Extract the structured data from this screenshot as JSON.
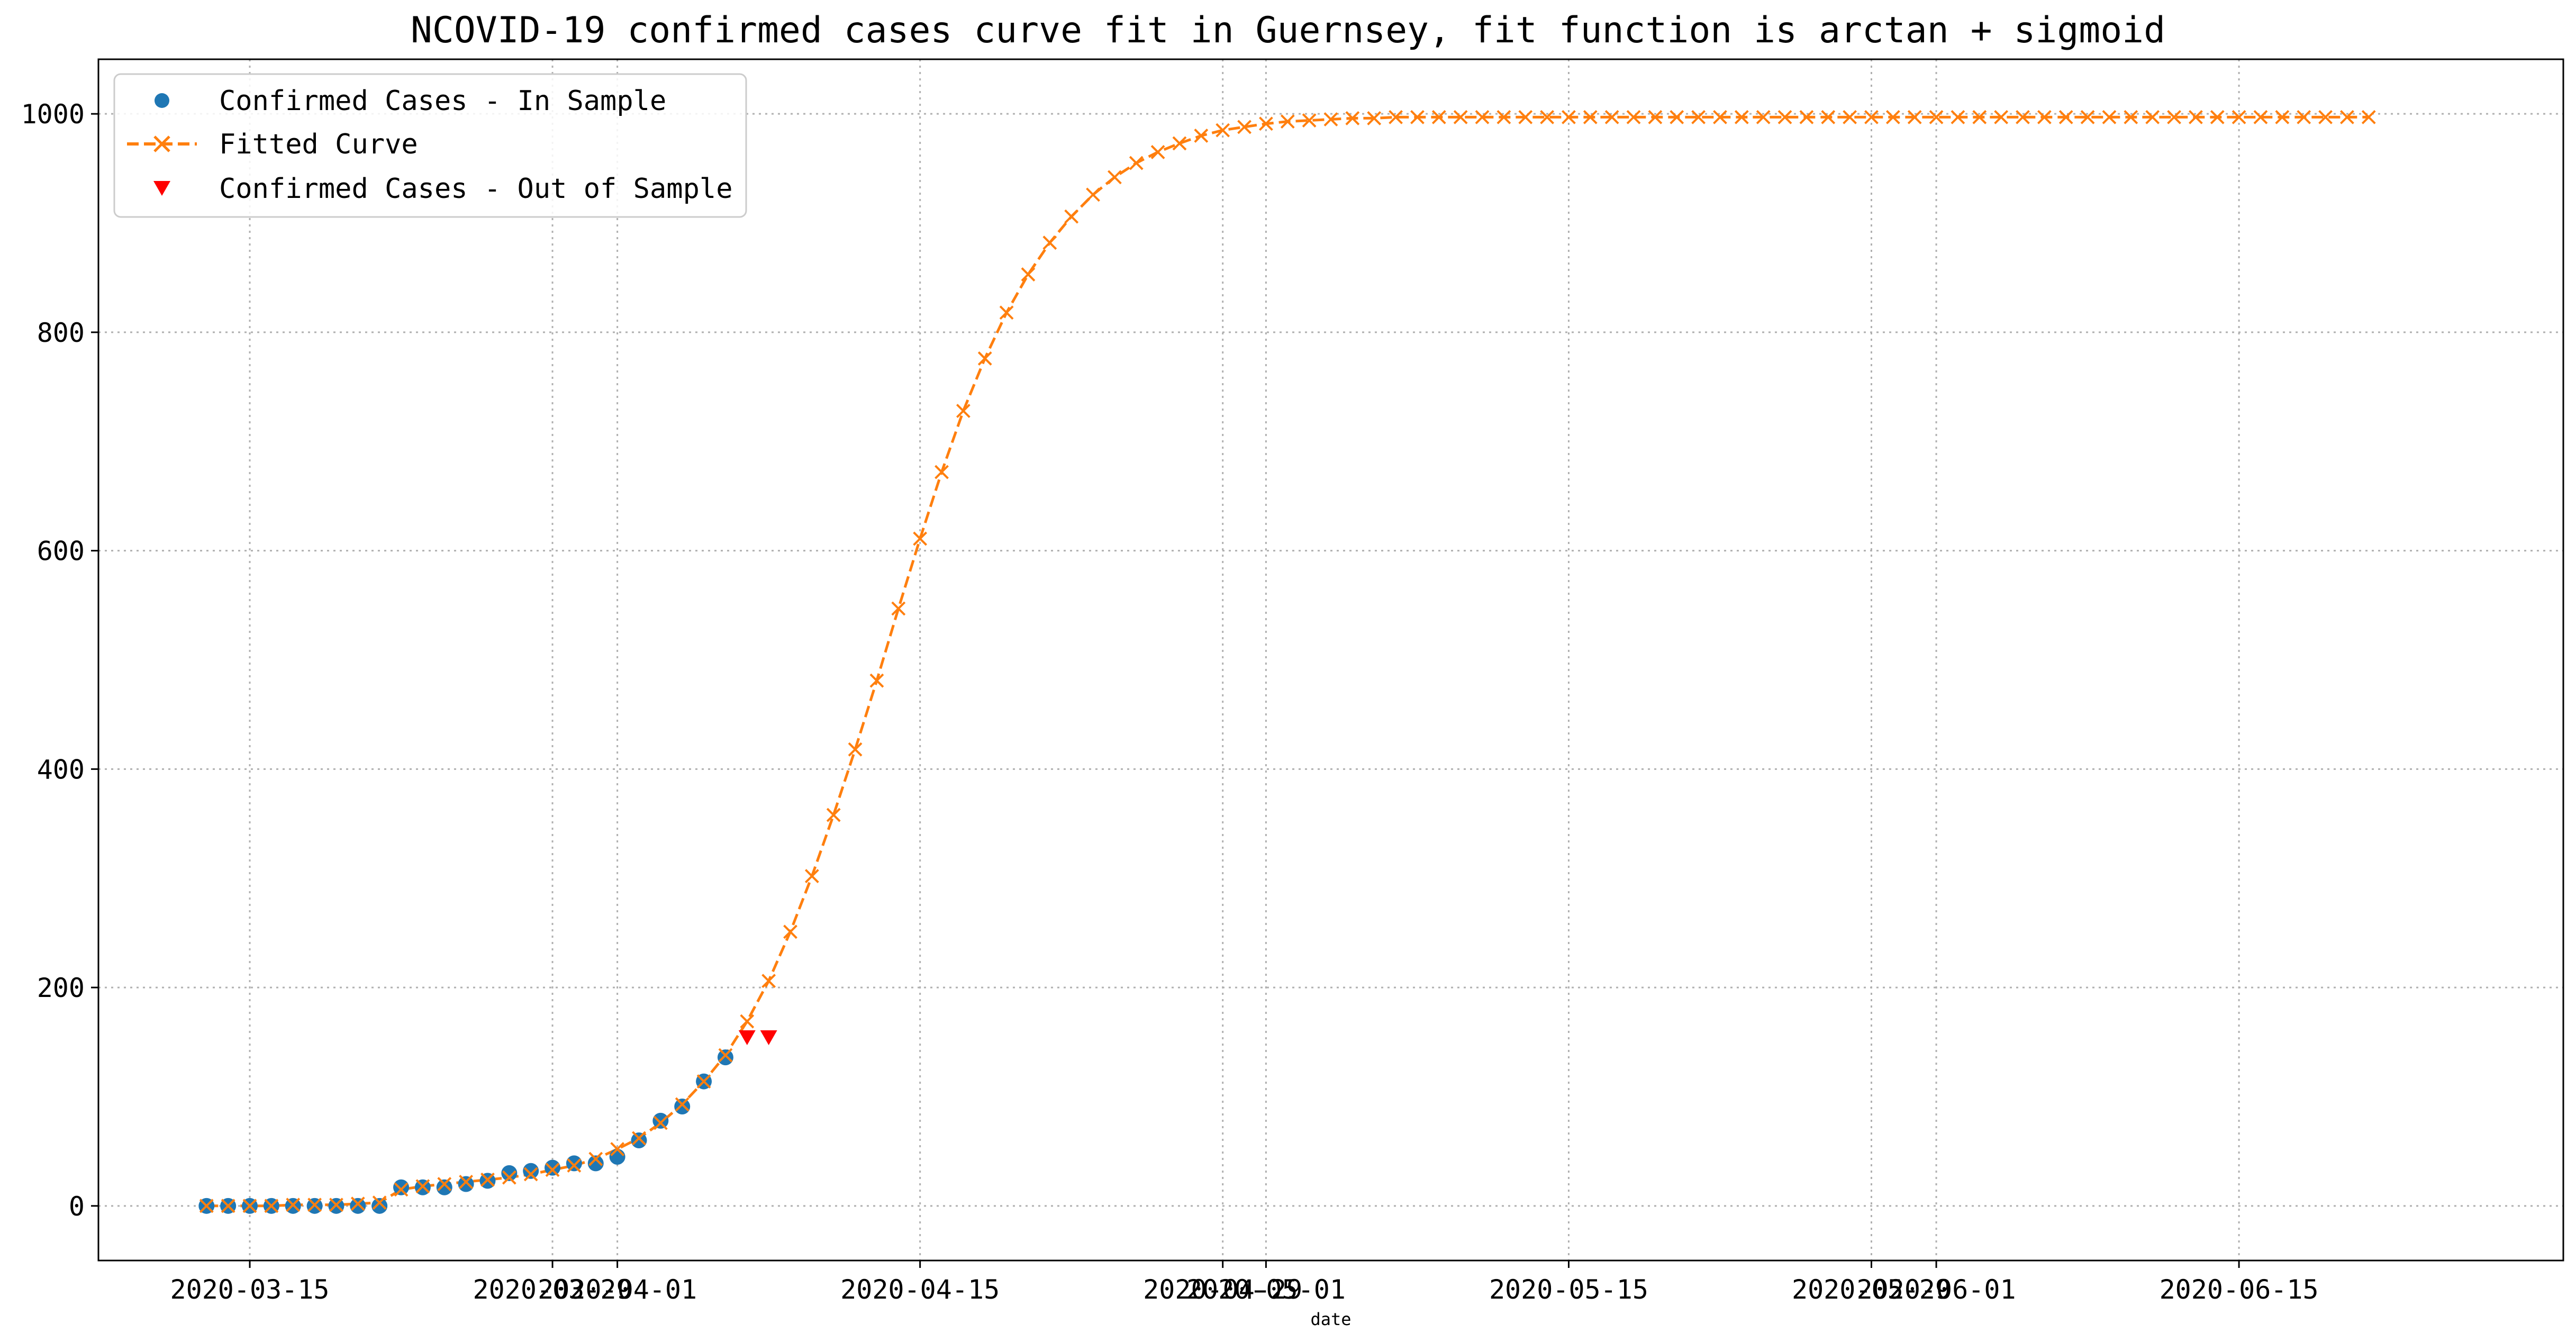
{
  "chart_data": {
    "type": "line",
    "title": "NCOVID-19 confirmed cases curve fit in Guernsey, fit function is arctan + sigmoid",
    "xlabel": "date",
    "ylabel": "",
    "xlim": [
      "2020-03-08",
      "2020-06-30"
    ],
    "ylim": [
      -50,
      1050
    ],
    "grid": true,
    "legend_position": "top-left",
    "y_ticks": [
      0,
      200,
      400,
      600,
      800,
      1000
    ],
    "x_tick_labels": [
      {
        "date": "2020-03-15",
        "label": "2020-03-15"
      },
      {
        "date": "2020-03-29",
        "label": "2020-03-29"
      },
      {
        "date": "2020-04-01",
        "label": "2020-04-01"
      },
      {
        "date": "2020-04-15",
        "label": "2020-04-15"
      },
      {
        "date": "2020-04-29",
        "label": "2020-04-29"
      },
      {
        "date": "2020-05-01",
        "label": "2020-05-01"
      },
      {
        "date": "2020-05-15",
        "label": "2020-05-15"
      },
      {
        "date": "2020-05-29",
        "label": "2020-05-29"
      },
      {
        "date": "2020-06-01",
        "label": "2020-06-01"
      },
      {
        "date": "2020-06-15",
        "label": "2020-06-15"
      }
    ],
    "series": [
      {
        "name": "Confirmed Cases - In Sample",
        "style": "dots",
        "color": "#1f77b4",
        "start_date": "2020-03-13",
        "values": [
          0,
          0,
          0,
          0,
          0,
          0,
          0,
          0,
          0,
          17,
          17,
          17,
          20,
          23,
          30,
          32,
          35,
          39,
          39,
          45,
          60,
          78,
          91,
          114,
          136
        ]
      },
      {
        "name": "Fitted Curve",
        "style": "dashed-line-x",
        "color": "#ff7f0e",
        "start_date": "2020-03-13",
        "values": [
          0,
          0,
          0,
          0,
          1,
          1,
          1,
          2,
          3,
          15,
          18,
          20,
          22,
          24,
          26,
          29,
          33,
          37,
          43,
          52,
          62,
          76,
          93,
          114,
          138,
          169,
          206,
          251,
          302,
          358,
          418,
          481,
          547,
          611,
          672,
          728,
          776,
          818,
          853,
          882,
          906,
          926,
          942,
          955,
          965,
          973,
          980,
          985,
          988,
          991,
          993,
          994,
          995,
          996,
          996,
          997,
          997,
          997,
          997,
          997,
          997,
          997,
          997,
          997,
          997,
          997,
          997,
          997,
          997,
          997,
          997,
          997,
          997,
          997,
          997,
          997,
          997,
          997,
          997,
          997,
          997,
          997,
          997,
          997,
          997,
          997,
          997,
          997,
          997,
          997,
          997,
          997,
          997,
          997,
          997,
          997,
          997,
          997,
          997,
          997,
          997
        ]
      },
      {
        "name": "Confirmed Cases - Out of Sample",
        "style": "triangles",
        "color": "#ff0000",
        "start_date": "2020-04-07",
        "values": [
          154,
          154
        ]
      }
    ]
  }
}
